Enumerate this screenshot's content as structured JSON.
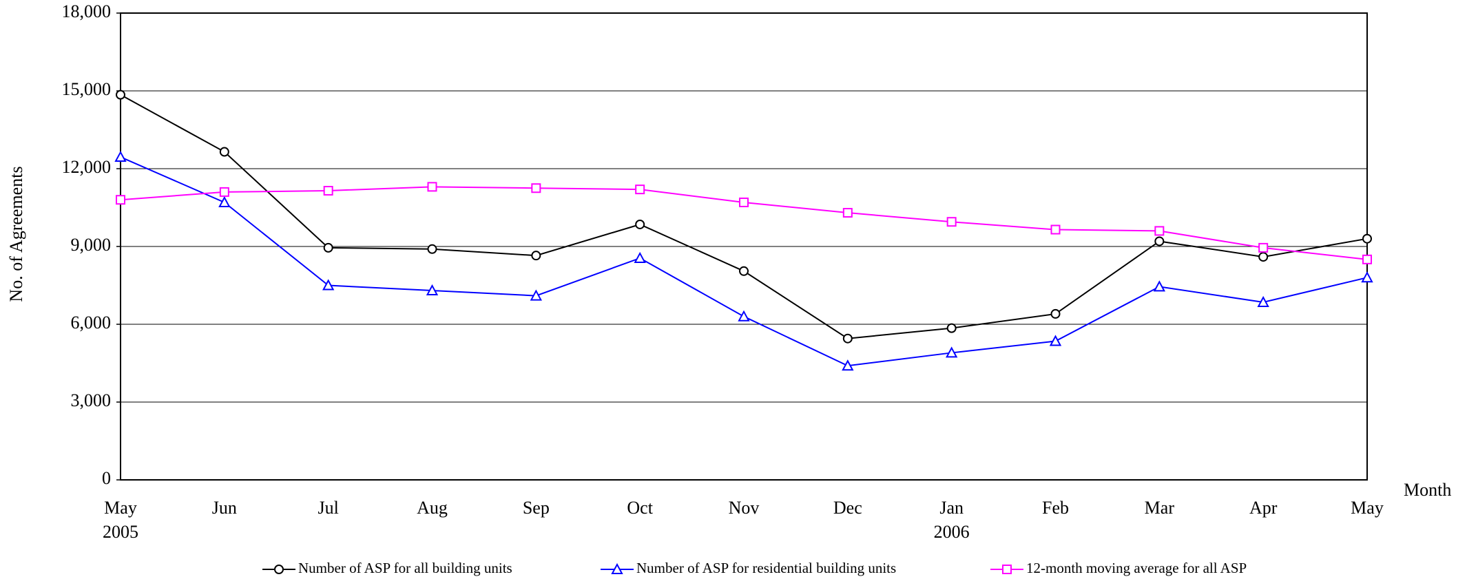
{
  "chart_data": {
    "type": "line",
    "y_label": "No. of Agreements",
    "x_label": "Month",
    "categories": [
      "May",
      "Jun",
      "Jul",
      "Aug",
      "Sep",
      "Oct",
      "Nov",
      "Dec",
      "Jan",
      "Feb",
      "Mar",
      "Apr",
      "May"
    ],
    "category_sublabels": [
      "2005",
      null,
      null,
      null,
      null,
      null,
      null,
      null,
      "2006",
      null,
      null,
      null,
      null
    ],
    "ylim": [
      0,
      18000
    ],
    "yticks": [
      0,
      {
        "value": 3000,
        "label": "3,000"
      },
      {
        "value": 6000,
        "label": "6,000"
      },
      {
        "value": 9000,
        "label": "9,000"
      },
      {
        "value": 12000,
        "label": "12,000"
      },
      {
        "value": 15000,
        "label": "15,000"
      },
      {
        "value": 18000,
        "label": "18,000"
      }
    ],
    "grid": true,
    "legend": "bottom",
    "series": [
      {
        "name": "Number of ASP for all building units",
        "color": "#000000",
        "marker": "circle",
        "values": [
          14850,
          12650,
          8950,
          8900,
          8650,
          9850,
          8050,
          5450,
          5850,
          6400,
          9200,
          8600,
          9300
        ]
      },
      {
        "name": "Number of ASP for residential building units",
        "color": "#0000ff",
        "marker": "triangle",
        "values": [
          12450,
          10700,
          7500,
          7300,
          7100,
          8550,
          6300,
          4400,
          4900,
          5350,
          7450,
          6850,
          7800
        ]
      },
      {
        "name": "12-month moving average for all ASP",
        "color": "#ff00ff",
        "marker": "square",
        "values": [
          10800,
          11100,
          11150,
          11300,
          11250,
          11200,
          10700,
          10300,
          9950,
          9650,
          9600,
          8950,
          8500
        ]
      }
    ]
  }
}
